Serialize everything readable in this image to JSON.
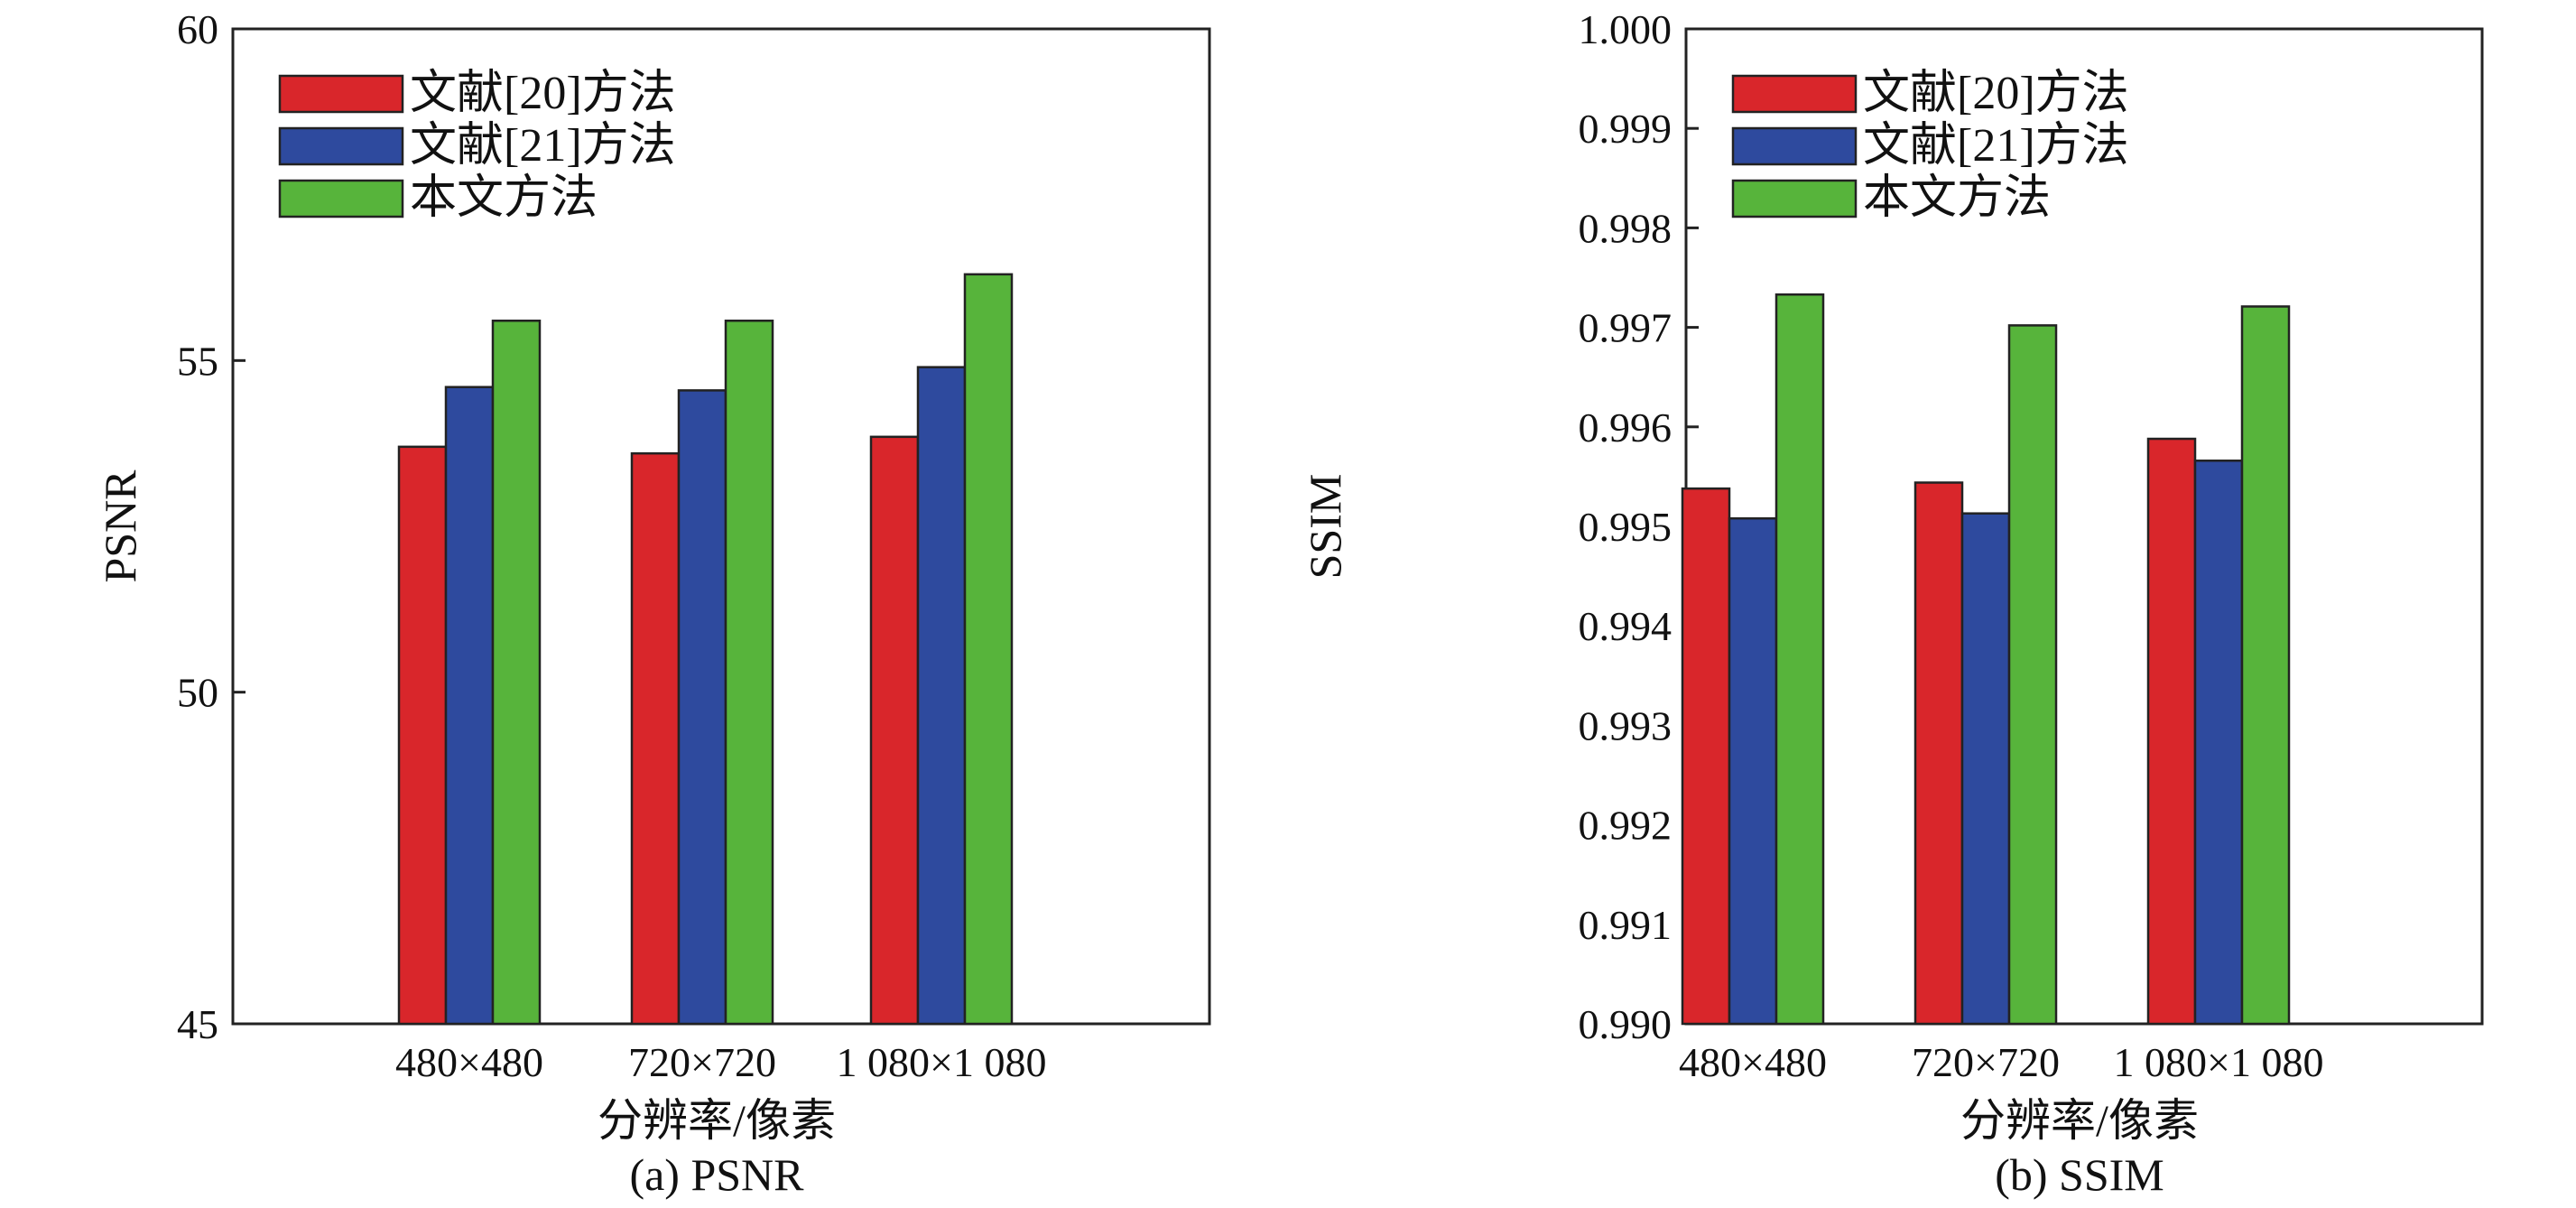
{
  "chart_data": [
    {
      "type": "bar",
      "caption": "(a) PSNR",
      "xlabel": "分辨率/像素",
      "ylabel": "PSNR",
      "categories": [
        "480×480",
        "720×720",
        "1 080×1 080"
      ],
      "ylim": [
        45,
        60
      ],
      "yticks": [
        "45",
        "50",
        "55",
        "60"
      ],
      "legend_position": "top-left",
      "series": [
        {
          "name": "文献[20]方法",
          "color": "#d9262b",
          "values": [
            53.7,
            53.6,
            53.85
          ]
        },
        {
          "name": "文献[21]方法",
          "color": "#2e4a9e",
          "values": [
            54.6,
            54.55,
            54.9
          ]
        },
        {
          "name": "本文方法",
          "color": "#57b43b",
          "values": [
            55.6,
            55.6,
            56.3
          ]
        }
      ]
    },
    {
      "type": "bar",
      "caption": "(b) SSIM",
      "xlabel": "分辨率/像素",
      "ylabel": "SSIM",
      "categories": [
        "480×480",
        "720×720",
        "1 080×1 080"
      ],
      "ylim": [
        0.99,
        1.0
      ],
      "yticks": [
        "0.990",
        "0.991",
        "0.992",
        "0.993",
        "0.994",
        "0.995",
        "0.996",
        "0.997",
        "0.998",
        "0.999",
        "1.000"
      ],
      "legend_position": "top-left",
      "series": [
        {
          "name": "文献[20]方法",
          "color": "#d9262b",
          "values": [
            0.99538,
            0.99544,
            0.99588
          ]
        },
        {
          "name": "文献[21]方法",
          "color": "#2e4a9e",
          "values": [
            0.99508,
            0.99513,
            0.99566
          ]
        },
        {
          "name": "本文方法",
          "color": "#57b43b",
          "values": [
            0.99733,
            0.99702,
            0.99721
          ]
        }
      ]
    }
  ]
}
